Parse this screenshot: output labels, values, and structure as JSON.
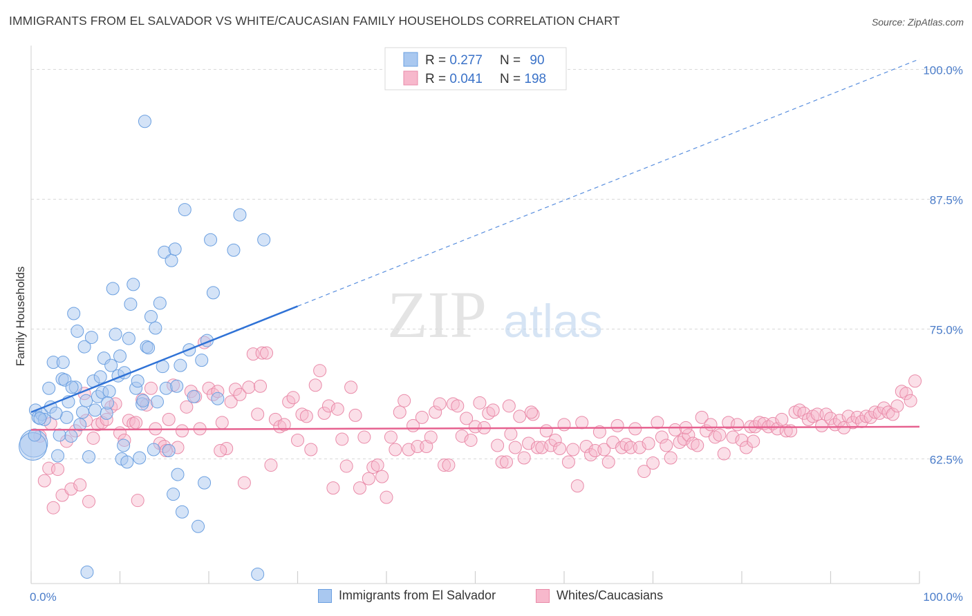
{
  "header": {
    "title": "IMMIGRANTS FROM EL SALVADOR VS WHITE/CAUCASIAN FAMILY HOUSEHOLDS CORRELATION CHART",
    "source": "Source: ZipAtlas.com"
  },
  "watermark": {
    "zip": "ZIP",
    "atlas": "atlas"
  },
  "colors": {
    "blue_fill": "#a9c8f0",
    "blue_stroke": "#6a9fe0",
    "blue_line": "#2f72d6",
    "pink_fill": "#f7b8cc",
    "pink_stroke": "#e98aa8",
    "pink_line": "#e6618f",
    "tick_label": "#4a7cc9",
    "grid": "#d8d8d8"
  },
  "legend_top": {
    "rows": [
      {
        "r_label": "R = ",
        "r_value": "0.277",
        "n_label": "N = ",
        "n_value": "90"
      },
      {
        "r_label": "R = ",
        "r_value": "0.041",
        "n_label": "N = ",
        "n_value": "198"
      }
    ]
  },
  "legend_bottom": {
    "series1": "Immigrants from El Salvador",
    "series2": "Whites/Caucasians"
  },
  "chart_data": {
    "type": "scatter",
    "title": "IMMIGRANTS FROM EL SALVADOR VS WHITE/CAUCASIAN FAMILY HOUSEHOLDS CORRELATION CHART",
    "xlabel": "",
    "ylabel": "Family Households",
    "xlim": [
      0,
      100
    ],
    "ylim": [
      50.5,
      101.5
    ],
    "x_tick_labels": [
      "0.0%",
      "100.0%"
    ],
    "y_ticks": [
      62.5,
      75.0,
      87.5,
      100.0
    ],
    "y_tick_labels": [
      "62.5%",
      "75.0%",
      "87.5%",
      "100.0%"
    ],
    "grid": true,
    "legend_position": "top-center",
    "series": [
      {
        "name": "Immigrants from El Salvador",
        "R": 0.277,
        "N": 90,
        "trend": {
          "x0": 0,
          "y0": 67.0,
          "x1": 100,
          "y1": 101.0,
          "solid_until_x": 30
        },
        "points": [
          [
            0.3,
            64.0
          ],
          [
            0.5,
            67.2
          ],
          [
            0.8,
            66.5
          ],
          [
            1.2,
            66.8
          ],
          [
            1.5,
            66.3
          ],
          [
            2.0,
            69.3
          ],
          [
            2.2,
            67.5
          ],
          [
            2.5,
            71.8
          ],
          [
            3.0,
            62.8
          ],
          [
            3.2,
            64.8
          ],
          [
            3.5,
            70.2
          ],
          [
            3.6,
            71.8
          ],
          [
            3.8,
            70.1
          ],
          [
            4.0,
            66.5
          ],
          [
            4.2,
            68.0
          ],
          [
            4.5,
            64.7
          ],
          [
            4.8,
            76.5
          ],
          [
            5.0,
            69.4
          ],
          [
            5.2,
            74.8
          ],
          [
            5.5,
            65.8
          ],
          [
            5.8,
            67.0
          ],
          [
            6.0,
            73.3
          ],
          [
            6.2,
            68.1
          ],
          [
            6.5,
            62.7
          ],
          [
            6.8,
            74.2
          ],
          [
            7.0,
            70.0
          ],
          [
            7.2,
            67.2
          ],
          [
            7.5,
            68.5
          ],
          [
            7.8,
            70.4
          ],
          [
            8.0,
            68.9
          ],
          [
            8.2,
            72.2
          ],
          [
            8.5,
            66.9
          ],
          [
            8.8,
            69.0
          ],
          [
            9.0,
            71.5
          ],
          [
            9.2,
            78.9
          ],
          [
            9.5,
            74.5
          ],
          [
            9.8,
            70.5
          ],
          [
            10.0,
            72.4
          ],
          [
            10.2,
            62.5
          ],
          [
            10.5,
            70.8
          ],
          [
            10.8,
            62.2
          ],
          [
            11.0,
            74.1
          ],
          [
            11.2,
            77.4
          ],
          [
            11.5,
            79.3
          ],
          [
            11.8,
            69.3
          ],
          [
            12.0,
            70.0
          ],
          [
            12.2,
            62.6
          ],
          [
            12.5,
            67.8
          ],
          [
            12.8,
            95.0
          ],
          [
            13.0,
            73.3
          ],
          [
            13.2,
            73.2
          ],
          [
            13.5,
            76.2
          ],
          [
            13.8,
            63.4
          ],
          [
            14.0,
            75.1
          ],
          [
            14.2,
            68.0
          ],
          [
            14.5,
            77.5
          ],
          [
            14.8,
            71.4
          ],
          [
            15.0,
            82.4
          ],
          [
            15.2,
            69.3
          ],
          [
            15.5,
            63.3
          ],
          [
            15.8,
            81.6
          ],
          [
            16.0,
            59.1
          ],
          [
            16.2,
            82.7
          ],
          [
            16.5,
            61.0
          ],
          [
            16.8,
            71.5
          ],
          [
            17.0,
            57.4
          ],
          [
            17.3,
            86.5
          ],
          [
            17.8,
            73.0
          ],
          [
            18.3,
            68.5
          ],
          [
            18.8,
            56.0
          ],
          [
            19.2,
            72.0
          ],
          [
            19.5,
            60.2
          ],
          [
            19.8,
            73.9
          ],
          [
            20.2,
            83.6
          ],
          [
            20.5,
            78.5
          ],
          [
            21.0,
            68.3
          ],
          [
            22.8,
            82.6
          ],
          [
            23.5,
            86.0
          ],
          [
            25.5,
            51.4
          ],
          [
            26.2,
            83.6
          ],
          [
            0.2,
            63.7
          ],
          [
            0.4,
            64.8
          ],
          [
            1.0,
            66.4
          ],
          [
            6.3,
            51.6
          ],
          [
            2.8,
            66.9
          ],
          [
            8.6,
            67.9
          ],
          [
            12.6,
            68.1
          ],
          [
            16.4,
            69.5
          ],
          [
            10.4,
            63.8
          ],
          [
            4.6,
            69.4
          ]
        ]
      },
      {
        "name": "Whites/Caucasians",
        "R": 0.041,
        "N": 198,
        "trend": {
          "x0": 0,
          "y0": 65.3,
          "x1": 100,
          "y1": 65.6
        },
        "points": [
          [
            1.0,
            64.7
          ],
          [
            1.5,
            60.4
          ],
          [
            2.0,
            61.6
          ],
          [
            2.5,
            57.8
          ],
          [
            3.0,
            61.5
          ],
          [
            3.5,
            59.0
          ],
          [
            4.0,
            64.2
          ],
          [
            4.5,
            59.6
          ],
          [
            5.0,
            65.2
          ],
          [
            5.5,
            60.0
          ],
          [
            6.0,
            68.8
          ],
          [
            6.5,
            58.4
          ],
          [
            7.0,
            64.5
          ],
          [
            7.5,
            65.8
          ],
          [
            8.0,
            66.0
          ],
          [
            8.5,
            66.3
          ],
          [
            9.0,
            67.5
          ],
          [
            9.5,
            67.8
          ],
          [
            10.0,
            65.0
          ],
          [
            10.5,
            64.3
          ],
          [
            11.0,
            66.2
          ],
          [
            11.5,
            65.9
          ],
          [
            12.0,
            58.5
          ],
          [
            12.5,
            68.2
          ],
          [
            13.0,
            67.7
          ],
          [
            13.5,
            69.3
          ],
          [
            14.0,
            65.4
          ],
          [
            14.5,
            64.0
          ],
          [
            15.0,
            63.7
          ],
          [
            15.5,
            66.3
          ],
          [
            16.0,
            69.6
          ],
          [
            16.5,
            63.6
          ],
          [
            17.0,
            65.2
          ],
          [
            17.5,
            67.5
          ],
          [
            18.0,
            69.0
          ],
          [
            18.5,
            68.5
          ],
          [
            19.0,
            65.4
          ],
          [
            19.5,
            73.7
          ],
          [
            20.0,
            69.3
          ],
          [
            20.5,
            68.7
          ],
          [
            21.0,
            69.0
          ],
          [
            21.5,
            66.0
          ],
          [
            22.0,
            63.5
          ],
          [
            22.5,
            68.0
          ],
          [
            23.0,
            69.2
          ],
          [
            23.5,
            68.7
          ],
          [
            24.0,
            60.2
          ],
          [
            24.5,
            69.4
          ],
          [
            25.0,
            72.6
          ],
          [
            25.5,
            66.8
          ],
          [
            26.0,
            72.7
          ],
          [
            26.5,
            72.7
          ],
          [
            27.0,
            61.9
          ],
          [
            27.5,
            66.3
          ],
          [
            28.0,
            65.6
          ],
          [
            28.5,
            65.8
          ],
          [
            29.0,
            68.0
          ],
          [
            29.5,
            68.4
          ],
          [
            30.0,
            64.3
          ],
          [
            30.5,
            66.8
          ],
          [
            31.0,
            66.6
          ],
          [
            31.5,
            63.4
          ],
          [
            32.0,
            69.6
          ],
          [
            32.5,
            71.0
          ],
          [
            33.0,
            66.9
          ],
          [
            33.5,
            67.6
          ],
          [
            34.0,
            59.7
          ],
          [
            34.5,
            67.3
          ],
          [
            35.0,
            64.4
          ],
          [
            35.5,
            61.8
          ],
          [
            36.0,
            69.4
          ],
          [
            36.5,
            66.7
          ],
          [
            37.0,
            59.7
          ],
          [
            37.5,
            64.6
          ],
          [
            38.0,
            60.6
          ],
          [
            38.5,
            61.7
          ],
          [
            39.0,
            61.9
          ],
          [
            39.5,
            60.8
          ],
          [
            40.0,
            58.8
          ],
          [
            40.5,
            64.6
          ],
          [
            41.0,
            63.4
          ],
          [
            41.5,
            67.0
          ],
          [
            42.0,
            68.1
          ],
          [
            42.5,
            63.4
          ],
          [
            43.0,
            65.7
          ],
          [
            43.5,
            63.7
          ],
          [
            44.0,
            66.5
          ],
          [
            44.5,
            63.7
          ],
          [
            45.0,
            64.6
          ],
          [
            45.5,
            67.0
          ],
          [
            46.0,
            67.8
          ],
          [
            46.5,
            61.9
          ],
          [
            47.0,
            61.9
          ],
          [
            47.5,
            67.8
          ],
          [
            48.0,
            67.6
          ],
          [
            48.5,
            64.7
          ],
          [
            49.0,
            66.4
          ],
          [
            49.5,
            64.3
          ],
          [
            50.0,
            65.6
          ],
          [
            50.5,
            67.9
          ],
          [
            51.0,
            65.5
          ],
          [
            51.5,
            66.9
          ],
          [
            52.0,
            67.2
          ],
          [
            52.5,
            63.8
          ],
          [
            53.0,
            62.2
          ],
          [
            53.5,
            62.2
          ],
          [
            54.0,
            64.9
          ],
          [
            54.5,
            63.6
          ],
          [
            55.0,
            66.6
          ],
          [
            55.5,
            62.6
          ],
          [
            56.0,
            64.0
          ],
          [
            56.5,
            66.8
          ],
          [
            57.0,
            63.6
          ],
          [
            57.5,
            63.6
          ],
          [
            58.0,
            65.2
          ],
          [
            58.5,
            63.8
          ],
          [
            59.0,
            64.3
          ],
          [
            59.5,
            63.5
          ],
          [
            60.0,
            65.8
          ],
          [
            60.5,
            62.2
          ],
          [
            61.0,
            63.4
          ],
          [
            61.5,
            59.9
          ],
          [
            62.0,
            66.0
          ],
          [
            62.5,
            63.7
          ],
          [
            63.0,
            62.9
          ],
          [
            63.5,
            63.3
          ],
          [
            64.0,
            65.1
          ],
          [
            64.5,
            63.4
          ],
          [
            65.0,
            62.2
          ],
          [
            65.5,
            64.1
          ],
          [
            66.0,
            65.7
          ],
          [
            66.5,
            63.6
          ],
          [
            67.0,
            63.9
          ],
          [
            67.5,
            63.6
          ],
          [
            68.0,
            65.4
          ],
          [
            68.5,
            63.6
          ],
          [
            69.0,
            61.3
          ],
          [
            69.5,
            64.0
          ],
          [
            70.0,
            62.1
          ],
          [
            70.5,
            66.0
          ],
          [
            71.0,
            64.6
          ],
          [
            71.5,
            63.8
          ],
          [
            72.0,
            62.6
          ],
          [
            72.5,
            65.3
          ],
          [
            73.0,
            64.1
          ],
          [
            73.5,
            64.4
          ],
          [
            74.0,
            64.8
          ],
          [
            74.5,
            64.0
          ],
          [
            75.0,
            63.8
          ],
          [
            75.5,
            66.5
          ],
          [
            76.0,
            65.2
          ],
          [
            76.5,
            65.8
          ],
          [
            77.0,
            64.6
          ],
          [
            77.5,
            64.8
          ],
          [
            78.0,
            63.0
          ],
          [
            78.5,
            66.0
          ],
          [
            79.0,
            64.6
          ],
          [
            79.5,
            65.8
          ],
          [
            80.0,
            64.3
          ],
          [
            80.5,
            63.6
          ],
          [
            81.0,
            65.6
          ],
          [
            81.5,
            65.6
          ],
          [
            82.0,
            66.0
          ],
          [
            82.5,
            65.9
          ],
          [
            83.0,
            65.6
          ],
          [
            83.5,
            65.9
          ],
          [
            84.0,
            65.4
          ],
          [
            84.5,
            66.3
          ],
          [
            85.0,
            65.2
          ],
          [
            85.5,
            65.2
          ],
          [
            86.0,
            67.0
          ],
          [
            86.5,
            67.2
          ],
          [
            87.0,
            66.9
          ],
          [
            87.5,
            66.3
          ],
          [
            88.0,
            66.6
          ],
          [
            88.5,
            66.8
          ],
          [
            89.0,
            65.7
          ],
          [
            89.5,
            66.8
          ],
          [
            90.0,
            66.4
          ],
          [
            90.5,
            65.8
          ],
          [
            91.0,
            66.2
          ],
          [
            91.5,
            65.5
          ],
          [
            92.0,
            66.6
          ],
          [
            92.5,
            66.0
          ],
          [
            93.0,
            66.5
          ],
          [
            93.5,
            66.1
          ],
          [
            94.0,
            66.6
          ],
          [
            94.5,
            66.5
          ],
          [
            95.0,
            67.0
          ],
          [
            95.5,
            66.9
          ],
          [
            96.0,
            67.4
          ],
          [
            96.5,
            67.0
          ],
          [
            97.0,
            66.8
          ],
          [
            97.5,
            67.6
          ],
          [
            98.0,
            69.0
          ],
          [
            98.5,
            68.8
          ],
          [
            99.0,
            68.1
          ],
          [
            99.5,
            70.0
          ],
          [
            2.2,
            65.9
          ],
          [
            15.2,
            63.3
          ],
          [
            21.3,
            63.3
          ],
          [
            6.2,
            66.2
          ],
          [
            11.8,
            66.0
          ],
          [
            25.8,
            69.5
          ],
          [
            53.8,
            67.6
          ],
          [
            56.3,
            67.0
          ],
          [
            73.7,
            65.5
          ],
          [
            81.3,
            64.2
          ]
        ]
      }
    ]
  }
}
